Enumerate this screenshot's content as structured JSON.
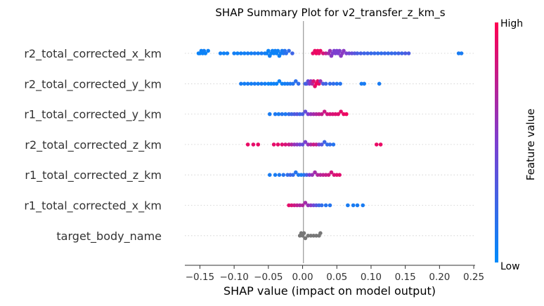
{
  "chart_data": {
    "type": "scatter",
    "subtype": "shap-beeswarm",
    "title": "SHAP Summary Plot for v2_transfer_z_km_s",
    "xlabel": "SHAP value (impact on model output)",
    "xlim": [
      -0.172,
      0.252
    ],
    "xticks": [
      {
        "value": -0.15,
        "label": "−0.15"
      },
      {
        "value": -0.1,
        "label": "−0.10"
      },
      {
        "value": -0.05,
        "label": "−0.05"
      },
      {
        "value": 0.0,
        "label": "0.00"
      },
      {
        "value": 0.05,
        "label": "0.05"
      },
      {
        "value": 0.1,
        "label": "0.10"
      },
      {
        "value": 0.15,
        "label": "0.15"
      },
      {
        "value": 0.2,
        "label": "0.20"
      },
      {
        "value": 0.25,
        "label": "0.25"
      }
    ],
    "colorbar": {
      "label": "Feature value",
      "high": "High",
      "low": "Low",
      "low_color": "#008bfb",
      "mid_color": "#7c3fd0",
      "high_color": "#ff0051"
    },
    "no_feature_color": "#777777",
    "features": [
      {
        "name": "r2_total_corrected_x_km",
        "points": [
          [
            -0.152,
            0.05
          ],
          [
            -0.15,
            0.05
          ],
          [
            -0.148,
            0.05
          ],
          [
            -0.146,
            0.05
          ],
          [
            -0.144,
            0.08
          ],
          [
            -0.142,
            0.05
          ],
          [
            -0.138,
            0.05
          ],
          [
            -0.12,
            0.08
          ],
          [
            -0.115,
            0.06
          ],
          [
            -0.11,
            0.07
          ],
          [
            -0.1,
            0.08
          ],
          [
            -0.095,
            0.06
          ],
          [
            -0.09,
            0.08
          ],
          [
            -0.085,
            0.07
          ],
          [
            -0.08,
            0.09
          ],
          [
            -0.075,
            0.08
          ],
          [
            -0.07,
            0.1
          ],
          [
            -0.065,
            0.09
          ],
          [
            -0.06,
            0.1
          ],
          [
            -0.055,
            0.08
          ],
          [
            -0.052,
            0.06
          ],
          [
            -0.05,
            0.05
          ],
          [
            -0.048,
            0.07
          ],
          [
            -0.046,
            0.05
          ],
          [
            -0.044,
            0.06
          ],
          [
            -0.042,
            0.05
          ],
          [
            -0.04,
            0.07
          ],
          [
            -0.038,
            0.05
          ],
          [
            -0.036,
            0.06
          ],
          [
            -0.034,
            0.06
          ],
          [
            -0.032,
            0.08
          ],
          [
            -0.03,
            0.1
          ],
          [
            -0.028,
            0.12
          ],
          [
            -0.026,
            0.15
          ],
          [
            -0.024,
            0.18
          ],
          [
            -0.02,
            0.2
          ],
          [
            -0.015,
            0.25
          ],
          [
            0.015,
            0.9
          ],
          [
            0.018,
            0.92
          ],
          [
            0.02,
            0.95
          ],
          [
            0.022,
            0.93
          ],
          [
            0.024,
            0.9
          ],
          [
            0.026,
            0.92
          ],
          [
            0.03,
            0.85
          ],
          [
            0.034,
            0.75
          ],
          [
            0.038,
            0.65
          ],
          [
            0.04,
            0.6
          ],
          [
            0.042,
            0.55
          ],
          [
            0.044,
            0.52
          ],
          [
            0.046,
            0.5
          ],
          [
            0.048,
            0.5
          ],
          [
            0.05,
            0.5
          ],
          [
            0.052,
            0.5
          ],
          [
            0.054,
            0.52
          ],
          [
            0.056,
            0.55
          ],
          [
            0.058,
            0.55
          ],
          [
            0.06,
            0.55
          ],
          [
            0.064,
            0.5
          ],
          [
            0.068,
            0.45
          ],
          [
            0.072,
            0.4
          ],
          [
            0.076,
            0.35
          ],
          [
            0.08,
            0.3
          ],
          [
            0.085,
            0.28
          ],
          [
            0.09,
            0.25
          ],
          [
            0.095,
            0.25
          ],
          [
            0.1,
            0.22
          ],
          [
            0.105,
            0.22
          ],
          [
            0.11,
            0.2
          ],
          [
            0.115,
            0.2
          ],
          [
            0.12,
            0.22
          ],
          [
            0.125,
            0.2
          ],
          [
            0.13,
            0.22
          ],
          [
            0.135,
            0.22
          ],
          [
            0.14,
            0.25
          ],
          [
            0.145,
            0.25
          ],
          [
            0.15,
            0.3
          ],
          [
            0.155,
            0.3
          ],
          [
            0.228,
            0.1
          ],
          [
            0.232,
            0.1
          ]
        ]
      },
      {
        "name": "r2_total_corrected_y_km",
        "points": [
          [
            -0.09,
            0.1
          ],
          [
            -0.085,
            0.08
          ],
          [
            -0.08,
            0.1
          ],
          [
            -0.075,
            0.08
          ],
          [
            -0.07,
            0.1
          ],
          [
            -0.065,
            0.08
          ],
          [
            -0.06,
            0.1
          ],
          [
            -0.055,
            0.08
          ],
          [
            -0.05,
            0.06
          ],
          [
            -0.046,
            0.05
          ],
          [
            -0.042,
            0.06
          ],
          [
            -0.038,
            0.05
          ],
          [
            -0.034,
            0.06
          ],
          [
            -0.03,
            0.06
          ],
          [
            -0.026,
            0.08
          ],
          [
            -0.022,
            0.1
          ],
          [
            -0.018,
            0.12
          ],
          [
            -0.014,
            0.15
          ],
          [
            -0.01,
            0.18
          ],
          [
            -0.006,
            0.2
          ],
          [
            0.004,
            0.25
          ],
          [
            0.006,
            0.3
          ],
          [
            0.008,
            0.4
          ],
          [
            0.01,
            0.5
          ],
          [
            0.012,
            0.6
          ],
          [
            0.014,
            0.7
          ],
          [
            0.016,
            0.85
          ],
          [
            0.018,
            0.9
          ],
          [
            0.02,
            0.95
          ],
          [
            0.022,
            0.92
          ],
          [
            0.024,
            0.9
          ],
          [
            0.026,
            0.6
          ],
          [
            0.03,
            0.3
          ],
          [
            0.034,
            0.25
          ],
          [
            0.04,
            0.2
          ],
          [
            0.045,
            0.2
          ],
          [
            0.05,
            0.15
          ],
          [
            0.055,
            0.15
          ],
          [
            0.086,
            0.1
          ],
          [
            0.09,
            0.1
          ],
          [
            0.112,
            0.1
          ]
        ]
      },
      {
        "name": "r1_total_corrected_y_km",
        "points": [
          [
            -0.048,
            0.1
          ],
          [
            -0.04,
            0.12
          ],
          [
            -0.035,
            0.1
          ],
          [
            -0.03,
            0.15
          ],
          [
            -0.025,
            0.12
          ],
          [
            -0.02,
            0.2
          ],
          [
            -0.016,
            0.25
          ],
          [
            -0.012,
            0.3
          ],
          [
            -0.008,
            0.35
          ],
          [
            -0.004,
            0.25
          ],
          [
            0.0,
            0.3
          ],
          [
            0.004,
            0.4
          ],
          [
            0.008,
            0.5
          ],
          [
            0.012,
            0.6
          ],
          [
            0.016,
            0.65
          ],
          [
            0.02,
            0.7
          ],
          [
            0.024,
            0.75
          ],
          [
            0.028,
            0.78
          ],
          [
            0.032,
            0.8
          ],
          [
            0.036,
            0.82
          ],
          [
            0.04,
            0.85
          ],
          [
            0.044,
            0.85
          ],
          [
            0.048,
            0.88
          ],
          [
            0.052,
            0.88
          ],
          [
            0.056,
            0.9
          ],
          [
            0.06,
            0.92
          ],
          [
            0.064,
            0.95
          ]
        ]
      },
      {
        "name": "r2_total_corrected_z_km",
        "points": [
          [
            -0.08,
            0.92
          ],
          [
            -0.072,
            0.9
          ],
          [
            -0.065,
            0.92
          ],
          [
            -0.042,
            0.9
          ],
          [
            -0.036,
            0.9
          ],
          [
            -0.03,
            0.88
          ],
          [
            -0.025,
            0.85
          ],
          [
            -0.02,
            0.8
          ],
          [
            -0.016,
            0.7
          ],
          [
            -0.012,
            0.6
          ],
          [
            -0.008,
            0.55
          ],
          [
            -0.004,
            0.45
          ],
          [
            0.0,
            0.4
          ],
          [
            0.004,
            0.5
          ],
          [
            0.008,
            0.6
          ],
          [
            0.012,
            0.7
          ],
          [
            0.016,
            0.8
          ],
          [
            0.02,
            0.75
          ],
          [
            0.024,
            0.5
          ],
          [
            0.028,
            0.35
          ],
          [
            0.032,
            0.25
          ],
          [
            0.036,
            0.2
          ],
          [
            0.04,
            0.2
          ],
          [
            0.045,
            0.15
          ],
          [
            0.108,
            0.92
          ],
          [
            0.114,
            0.92
          ]
        ]
      },
      {
        "name": "r1_total_corrected_z_km",
        "points": [
          [
            -0.048,
            0.1
          ],
          [
            -0.04,
            0.1
          ],
          [
            -0.034,
            0.12
          ],
          [
            -0.028,
            0.15
          ],
          [
            -0.022,
            0.2
          ],
          [
            -0.018,
            0.25
          ],
          [
            -0.014,
            0.2
          ],
          [
            -0.01,
            0.15
          ],
          [
            -0.006,
            0.12
          ],
          [
            -0.002,
            0.1
          ],
          [
            0.002,
            0.15
          ],
          [
            0.006,
            0.3
          ],
          [
            0.01,
            0.5
          ],
          [
            0.014,
            0.6
          ],
          [
            0.018,
            0.65
          ],
          [
            0.022,
            0.7
          ],
          [
            0.026,
            0.72
          ],
          [
            0.03,
            0.75
          ],
          [
            0.034,
            0.78
          ],
          [
            0.038,
            0.8
          ],
          [
            0.042,
            0.82
          ],
          [
            0.046,
            0.85
          ],
          [
            0.05,
            0.88
          ],
          [
            0.054,
            0.88
          ]
        ]
      },
      {
        "name": "r1_total_corrected_x_km",
        "points": [
          [
            -0.02,
            0.9
          ],
          [
            -0.016,
            0.85
          ],
          [
            -0.012,
            0.8
          ],
          [
            -0.008,
            0.75
          ],
          [
            -0.004,
            0.7
          ],
          [
            0.0,
            0.7
          ],
          [
            0.004,
            0.65
          ],
          [
            0.008,
            0.6
          ],
          [
            0.012,
            0.55
          ],
          [
            0.016,
            0.45
          ],
          [
            0.02,
            0.35
          ],
          [
            0.024,
            0.25
          ],
          [
            0.028,
            0.2
          ],
          [
            0.034,
            0.15
          ],
          [
            0.04,
            0.15
          ],
          [
            0.066,
            0.1
          ],
          [
            0.074,
            0.1
          ],
          [
            0.08,
            0.1
          ],
          [
            0.088,
            0.1
          ]
        ]
      },
      {
        "name": "target_body_name",
        "points": [
          [
            -0.004,
            null
          ],
          [
            -0.002,
            null
          ],
          [
            0.0,
            null
          ],
          [
            0.002,
            null
          ],
          [
            0.004,
            null
          ],
          [
            0.008,
            null
          ],
          [
            0.012,
            null
          ],
          [
            0.016,
            null
          ],
          [
            0.02,
            null
          ],
          [
            0.024,
            null
          ],
          [
            0.026,
            null
          ]
        ]
      }
    ]
  }
}
